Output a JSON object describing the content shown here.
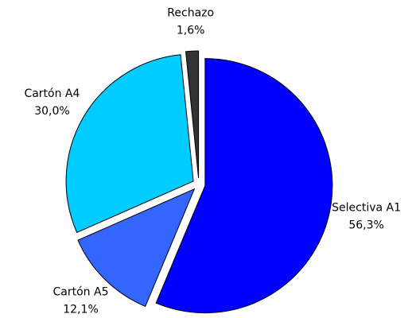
{
  "chart_data": {
    "type": "pie",
    "categories": [
      "Selectiva A1",
      "Cartón A5",
      "Cartón A4",
      "Rechazo"
    ],
    "values": [
      56.3,
      12.1,
      30.0,
      1.6
    ],
    "value_labels": [
      "56,3%",
      "12,1%",
      "30,0%",
      "1,6%"
    ],
    "colors": [
      "#0000ff",
      "#3366ff",
      "#00ccff",
      "#333333"
    ]
  }
}
